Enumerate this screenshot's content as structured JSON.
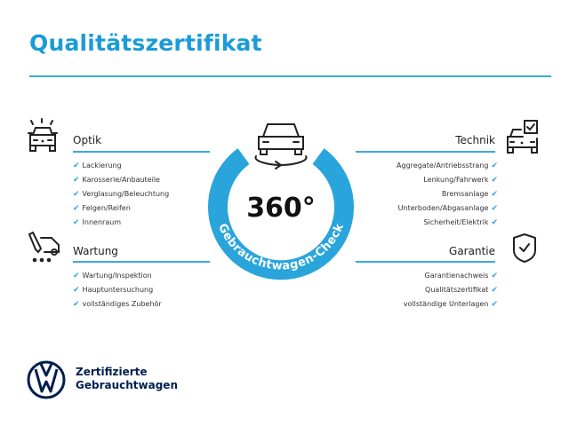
{
  "title": "Qualitätszertifikat",
  "colors": {
    "accent": "#2aa5dc",
    "title": "#1b9bd7",
    "brand": "#001e50"
  },
  "badge": {
    "value": "360°",
    "ring_text": "Gebrauchtwagen-Check",
    "icon": "car-rotate-icon"
  },
  "sections": {
    "optik": {
      "title": "Optik",
      "icon": "car-lights-icon",
      "items": [
        "Lackierung",
        "Karosserie/Anbauteile",
        "Verglasung/Beleuchtung",
        "Felgen/Reifen",
        "Innenraum"
      ]
    },
    "wartung": {
      "title": "Wartung",
      "icon": "maintenance-icon",
      "items": [
        "Wartung/Inspektion",
        "Hauptuntersuchung",
        "vollständiges Zubehör"
      ]
    },
    "technik": {
      "title": "Technik",
      "icon": "car-checklist-icon",
      "items": [
        "Aggregate/Antriebsstrang",
        "Lenkung/Fahrwerk",
        "Bremsanlage",
        "Unterboden/Abgasanlage",
        "Sicherheit/Elektrik"
      ]
    },
    "garantie": {
      "title": "Garantie",
      "icon": "shield-check-icon",
      "items": [
        "Garantienachweis",
        "Qualitätszertifikat",
        "vollständige Unterlagen"
      ]
    }
  },
  "check_glyph": "✔",
  "footer": {
    "line1": "Zertifizierte",
    "line2": "Gebrauchtwagen",
    "logo": "vw-logo"
  }
}
